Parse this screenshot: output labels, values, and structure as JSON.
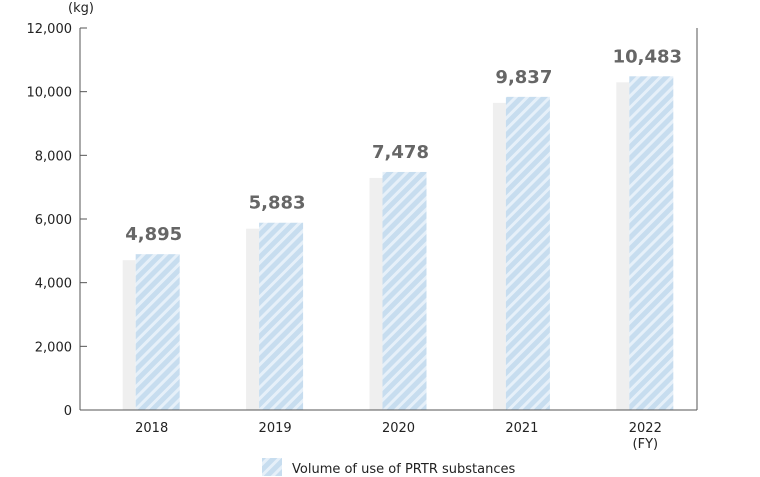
{
  "chart_data": {
    "type": "bar",
    "unit_label": "(kg)",
    "categories": [
      "2018",
      "2019",
      "2020",
      "2021",
      "2022"
    ],
    "category_suffix": "(FY)",
    "series": [
      {
        "name": "Volume of use of PRTR substances",
        "values": [
          4895,
          5883,
          7478,
          9837,
          10483
        ],
        "value_labels": [
          "4,895",
          "5,883",
          "7,478",
          "9,837",
          "10,483"
        ]
      }
    ],
    "ylim": [
      0,
      12000
    ],
    "yticks": [
      0,
      2000,
      4000,
      6000,
      8000,
      10000,
      12000
    ],
    "ytick_labels": [
      "0",
      "2,000",
      "4,000",
      "6,000",
      "8,000",
      "10,000",
      "12,000"
    ],
    "legend_position": "bottom-center",
    "grid": false,
    "colors": {
      "bar_fill": "#c7ddef",
      "bar_stripe": "#e6f0f9",
      "bar_shadow": "#efefef",
      "axis": "#555555",
      "label": "#666666"
    }
  }
}
